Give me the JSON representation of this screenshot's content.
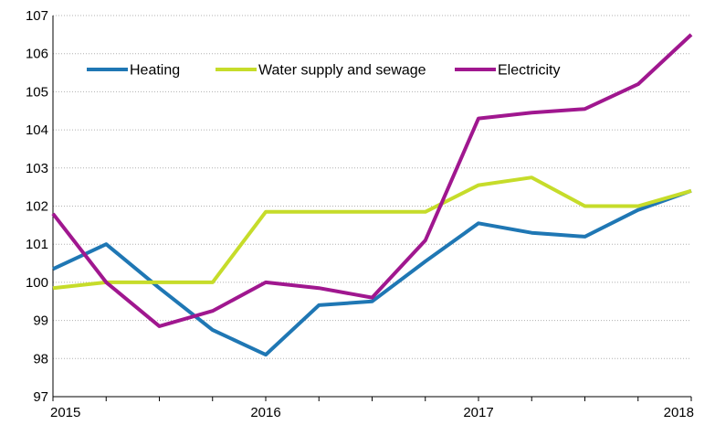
{
  "chart_data": {
    "type": "line",
    "x": [
      0,
      1,
      2,
      3,
      4,
      5,
      6,
      7,
      8,
      9,
      10,
      11,
      12
    ],
    "x_tick_labels": [
      {
        "at": 0,
        "label": "2015"
      },
      {
        "at": 4,
        "label": "2016"
      },
      {
        "at": 8,
        "label": "2017"
      },
      {
        "at": 12,
        "label": "2018"
      }
    ],
    "ylim": [
      97,
      107
    ],
    "y_ticks": [
      "97",
      "98",
      "99",
      "100",
      "101",
      "102",
      "103",
      "104",
      "105",
      "106",
      "107"
    ],
    "grid": true,
    "legend_position": "top",
    "series": [
      {
        "name": "Heating",
        "color": "#1f77b4",
        "values": [
          100.35,
          101.0,
          99.85,
          98.75,
          98.1,
          99.4,
          99.5,
          100.55,
          101.55,
          101.3,
          101.2,
          101.9,
          102.4
        ]
      },
      {
        "name": "Water supply and sewage",
        "color": "#c6dc2a",
        "values": [
          99.85,
          100.0,
          100.0,
          100.0,
          101.85,
          101.85,
          101.85,
          101.85,
          102.55,
          102.75,
          102.0,
          102.0,
          102.4
        ]
      },
      {
        "name": "Electricity",
        "color": "#a0178f",
        "values": [
          101.8,
          100.0,
          98.85,
          99.25,
          100.0,
          99.85,
          99.6,
          101.1,
          104.3,
          104.45,
          104.55,
          105.2,
          106.5
        ]
      }
    ]
  }
}
